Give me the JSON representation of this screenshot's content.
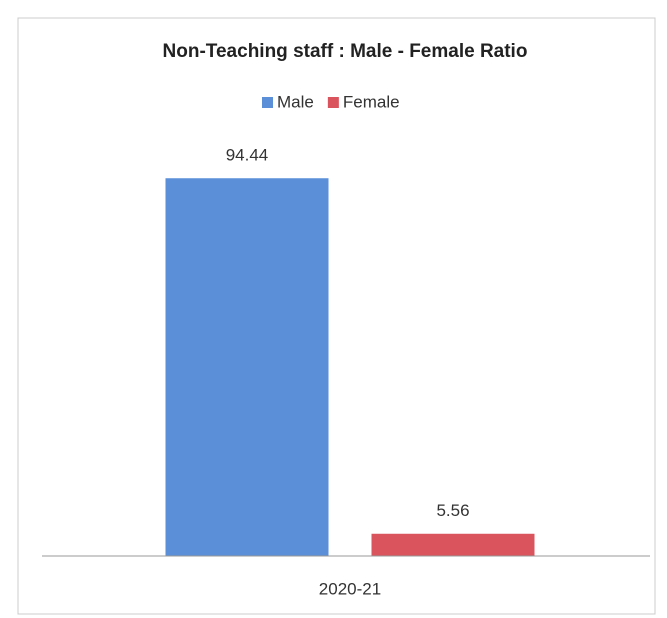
{
  "chart_data": {
    "type": "bar",
    "title": "Non-Teaching staff : Male - Female Ratio",
    "categories": [
      "2020-21"
    ],
    "series": [
      {
        "name": "Male",
        "color": "#5b8fd8",
        "values": [
          94.44
        ]
      },
      {
        "name": "Female",
        "color": "#d9545c",
        "values": [
          5.56
        ]
      }
    ],
    "ylim": [
      0,
      100
    ],
    "legend": "top"
  }
}
